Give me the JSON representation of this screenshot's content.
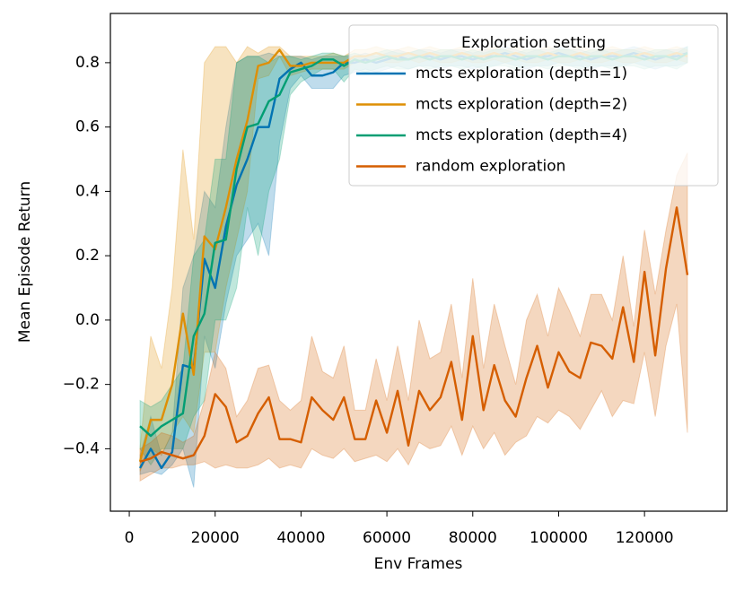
{
  "chart_data": {
    "type": "line",
    "xlabel": "Env Frames",
    "ylabel": "Mean Episode Return",
    "legend_title": "Exploration setting",
    "legend_loc": "upper right",
    "xlim": [
      -4400,
      139200
    ],
    "ylim": [
      -0.594,
      0.953
    ],
    "xticks": [
      0,
      20000,
      40000,
      60000,
      80000,
      100000,
      120000
    ],
    "yticks": [
      {
        "value": -0.4,
        "label": "−0.4"
      },
      {
        "value": -0.2,
        "label": "−0.2"
      },
      {
        "value": 0,
        "label": "0.0"
      },
      0.2,
      0.4,
      0.6,
      0.8
    ],
    "band_opacity": 0.25,
    "x": [
      2500,
      5000,
      7500,
      10000,
      12500,
      15000,
      17500,
      20000,
      22500,
      25000,
      27500,
      30000,
      32500,
      35000,
      37500,
      40000,
      42500,
      45000,
      47500,
      50000,
      52500,
      55000,
      57500,
      60000,
      62500,
      65000,
      67500,
      70000,
      72500,
      75000,
      77500,
      80000,
      82500,
      85000,
      87500,
      90000,
      92500,
      95000,
      97500,
      100000,
      102500,
      105000,
      107500,
      110000,
      112500,
      115000,
      117500,
      120000,
      122500,
      125000,
      127500,
      130000
    ],
    "series": [
      {
        "name": "mcts exploration (depth=1)",
        "color": "#0173b2",
        "values": [
          -0.46,
          -0.4,
          -0.46,
          -0.41,
          -0.14,
          -0.15,
          0.19,
          0.1,
          0.29,
          0.42,
          0.5,
          0.6,
          0.6,
          0.75,
          0.78,
          0.8,
          0.76,
          0.76,
          0.77,
          0.8,
          0.8,
          0.81,
          0.8,
          0.81,
          0.82,
          0.81,
          0.82,
          0.82,
          0.81,
          0.82,
          0.82,
          0.81,
          0.82,
          0.82,
          0.83,
          0.82,
          0.81,
          0.82,
          0.82,
          0.83,
          0.82,
          0.82,
          0.81,
          0.82,
          0.82,
          0.82,
          0.83,
          0.82,
          0.81,
          0.82,
          0.82,
          0.83
        ],
        "lower": [
          -0.48,
          -0.47,
          -0.48,
          -0.45,
          -0.4,
          -0.52,
          -0.05,
          -0.15,
          0.05,
          0.2,
          0.25,
          0.3,
          0.2,
          0.55,
          0.72,
          0.76,
          0.72,
          0.72,
          0.72,
          0.76,
          0.77,
          0.78,
          0.77,
          0.78,
          0.79,
          0.78,
          0.79,
          0.79,
          0.78,
          0.79,
          0.79,
          0.78,
          0.79,
          0.79,
          0.8,
          0.79,
          0.78,
          0.79,
          0.79,
          0.8,
          0.79,
          0.79,
          0.78,
          0.79,
          0.79,
          0.79,
          0.8,
          0.79,
          0.78,
          0.79,
          0.79,
          0.8
        ],
        "upper": [
          -0.42,
          -0.3,
          -0.42,
          -0.35,
          0.1,
          0.2,
          0.4,
          0.35,
          0.6,
          0.8,
          0.82,
          0.82,
          0.83,
          0.82,
          0.82,
          0.82,
          0.81,
          0.82,
          0.82,
          0.82,
          0.82,
          0.83,
          0.82,
          0.83,
          0.84,
          0.83,
          0.84,
          0.84,
          0.83,
          0.84,
          0.84,
          0.83,
          0.84,
          0.84,
          0.85,
          0.84,
          0.83,
          0.84,
          0.84,
          0.85,
          0.84,
          0.84,
          0.83,
          0.84,
          0.84,
          0.84,
          0.85,
          0.84,
          0.83,
          0.84,
          0.84,
          0.85
        ]
      },
      {
        "name": "mcts exploration (depth=2)",
        "color": "#de8f05",
        "values": [
          -0.44,
          -0.31,
          -0.31,
          -0.2,
          0.02,
          -0.17,
          0.26,
          0.22,
          0.35,
          0.5,
          0.62,
          0.79,
          0.8,
          0.84,
          0.79,
          0.79,
          0.8,
          0.8,
          0.8,
          0.8,
          0.82,
          0.82,
          0.83,
          0.82,
          0.82,
          0.83,
          0.82,
          0.83,
          0.82,
          0.82,
          0.83,
          0.82,
          0.82,
          0.83,
          0.82,
          0.83,
          0.82,
          0.82,
          0.83,
          0.82,
          0.82,
          0.83,
          0.82,
          0.82,
          0.83,
          0.82,
          0.82,
          0.83,
          0.82,
          0.82,
          0.83,
          0.82
        ],
        "lower": [
          -0.47,
          -0.4,
          -0.42,
          -0.35,
          -0.3,
          -0.35,
          -0.1,
          -0.1,
          0.1,
          0.25,
          0.4,
          0.75,
          0.76,
          0.82,
          0.76,
          0.77,
          0.78,
          0.78,
          0.78,
          0.78,
          0.8,
          0.8,
          0.81,
          0.8,
          0.8,
          0.81,
          0.8,
          0.81,
          0.8,
          0.8,
          0.81,
          0.8,
          0.8,
          0.81,
          0.8,
          0.81,
          0.8,
          0.8,
          0.81,
          0.8,
          0.8,
          0.81,
          0.8,
          0.8,
          0.81,
          0.8,
          0.8,
          0.81,
          0.8,
          0.8,
          0.81,
          0.8
        ],
        "upper": [
          -0.4,
          -0.05,
          -0.15,
          0.1,
          0.53,
          0.25,
          0.8,
          0.85,
          0.85,
          0.8,
          0.85,
          0.83,
          0.85,
          0.85,
          0.82,
          0.82,
          0.82,
          0.82,
          0.83,
          0.82,
          0.84,
          0.84,
          0.85,
          0.84,
          0.84,
          0.85,
          0.84,
          0.85,
          0.84,
          0.84,
          0.85,
          0.84,
          0.84,
          0.85,
          0.84,
          0.85,
          0.84,
          0.84,
          0.85,
          0.84,
          0.84,
          0.85,
          0.84,
          0.84,
          0.85,
          0.84,
          0.84,
          0.85,
          0.84,
          0.84,
          0.85,
          0.84
        ]
      },
      {
        "name": "mcts exploration (depth=4)",
        "color": "#029e73",
        "values": [
          -0.33,
          -0.36,
          -0.33,
          -0.31,
          -0.29,
          -0.05,
          0.02,
          0.24,
          0.25,
          0.47,
          0.6,
          0.61,
          0.68,
          0.7,
          0.77,
          0.78,
          0.79,
          0.81,
          0.81,
          0.79,
          0.81,
          0.8,
          0.81,
          0.82,
          0.81,
          0.81,
          0.82,
          0.81,
          0.82,
          0.82,
          0.81,
          0.82,
          0.81,
          0.82,
          0.82,
          0.81,
          0.82,
          0.82,
          0.81,
          0.82,
          0.82,
          0.81,
          0.82,
          0.82,
          0.81,
          0.82,
          0.82,
          0.81,
          0.82,
          0.82,
          0.81,
          0.83
        ],
        "lower": [
          -0.4,
          -0.45,
          -0.4,
          -0.4,
          -0.4,
          -0.3,
          -0.25,
          0.0,
          0.0,
          0.1,
          0.35,
          0.2,
          0.4,
          0.5,
          0.7,
          0.74,
          0.76,
          0.78,
          0.78,
          0.74,
          0.78,
          0.77,
          0.78,
          0.79,
          0.78,
          0.78,
          0.79,
          0.78,
          0.79,
          0.79,
          0.78,
          0.79,
          0.78,
          0.79,
          0.79,
          0.78,
          0.79,
          0.79,
          0.78,
          0.79,
          0.79,
          0.78,
          0.79,
          0.79,
          0.78,
          0.79,
          0.79,
          0.78,
          0.79,
          0.79,
          0.78,
          0.8
        ],
        "upper": [
          -0.25,
          -0.27,
          -0.25,
          -0.2,
          -0.15,
          0.2,
          0.25,
          0.5,
          0.5,
          0.8,
          0.82,
          0.82,
          0.8,
          0.82,
          0.82,
          0.81,
          0.82,
          0.83,
          0.83,
          0.82,
          0.83,
          0.82,
          0.83,
          0.84,
          0.83,
          0.83,
          0.84,
          0.83,
          0.84,
          0.84,
          0.83,
          0.84,
          0.83,
          0.84,
          0.84,
          0.83,
          0.84,
          0.84,
          0.83,
          0.84,
          0.84,
          0.83,
          0.84,
          0.84,
          0.83,
          0.84,
          0.84,
          0.83,
          0.84,
          0.84,
          0.83,
          0.85
        ]
      },
      {
        "name": "random exploration",
        "color": "#d55e00",
        "values": [
          -0.44,
          -0.43,
          -0.41,
          -0.42,
          -0.43,
          -0.42,
          -0.36,
          -0.23,
          -0.27,
          -0.38,
          -0.36,
          -0.29,
          -0.24,
          -0.37,
          -0.37,
          -0.38,
          -0.24,
          -0.28,
          -0.31,
          -0.24,
          -0.37,
          -0.37,
          -0.25,
          -0.35,
          -0.22,
          -0.39,
          -0.22,
          -0.28,
          -0.24,
          -0.13,
          -0.31,
          -0.05,
          -0.28,
          -0.14,
          -0.25,
          -0.3,
          -0.18,
          -0.08,
          -0.21,
          -0.1,
          -0.16,
          -0.18,
          -0.07,
          -0.08,
          -0.12,
          0.04,
          -0.13,
          0.15,
          -0.11,
          0.16,
          0.35,
          0.14
        ],
        "lower": [
          -0.5,
          -0.48,
          -0.46,
          -0.46,
          -0.45,
          -0.45,
          -0.44,
          -0.46,
          -0.45,
          -0.46,
          -0.46,
          -0.45,
          -0.43,
          -0.46,
          -0.45,
          -0.46,
          -0.4,
          -0.42,
          -0.43,
          -0.4,
          -0.44,
          -0.43,
          -0.42,
          -0.44,
          -0.4,
          -0.45,
          -0.38,
          -0.4,
          -0.39,
          -0.33,
          -0.42,
          -0.33,
          -0.4,
          -0.35,
          -0.42,
          -0.38,
          -0.36,
          -0.3,
          -0.32,
          -0.28,
          -0.3,
          -0.34,
          -0.28,
          -0.22,
          -0.3,
          -0.25,
          -0.26,
          -0.1,
          -0.3,
          -0.08,
          0.05,
          -0.35
        ],
        "upper": [
          -0.4,
          -0.38,
          -0.35,
          -0.36,
          -0.38,
          -0.36,
          -0.25,
          -0.1,
          -0.15,
          -0.3,
          -0.25,
          -0.15,
          -0.14,
          -0.25,
          -0.28,
          -0.25,
          -0.05,
          -0.16,
          -0.18,
          -0.08,
          -0.28,
          -0.28,
          -0.12,
          -0.25,
          -0.08,
          -0.25,
          0.0,
          -0.12,
          -0.1,
          0.05,
          -0.18,
          0.13,
          -0.15,
          0.05,
          -0.08,
          -0.2,
          0.0,
          0.08,
          -0.05,
          0.1,
          0.03,
          -0.05,
          0.08,
          0.08,
          0.0,
          0.2,
          -0.02,
          0.28,
          0.08,
          0.28,
          0.45,
          0.52
        ]
      }
    ]
  }
}
